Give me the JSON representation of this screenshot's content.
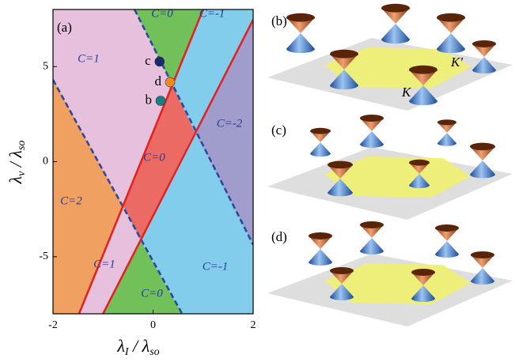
{
  "chart_data": {
    "type": "phase_diagram",
    "panel_label": "(a)",
    "xlabel": {
      "symbol": "λ",
      "sub": "I",
      "slash": " / ",
      "symbol2": "λ",
      "sub2": "so"
    },
    "ylabel": {
      "symbol": "λ",
      "sub": "v",
      "slash": " / ",
      "symbol2": "λ",
      "sub2": "so"
    },
    "xlim": [
      -2,
      2
    ],
    "ylim": [
      -8,
      8
    ],
    "xticks": [
      -2,
      0,
      2
    ],
    "yticks": [
      -5,
      0,
      5
    ],
    "regions": [
      {
        "label": "C=2",
        "color": "#f0a060"
      },
      {
        "label": "C=1",
        "color": "#e6c0dc"
      },
      {
        "label": "C=0",
        "color": "#72c05a"
      },
      {
        "label": "C=-1",
        "color": "#82cdec"
      },
      {
        "label": "C=-2",
        "color": "#a09ccb"
      },
      {
        "label": "C=0",
        "color": "#ec6a64"
      },
      {
        "label": "C=1",
        "color": "#e6c0dc"
      },
      {
        "label": "C=0",
        "color": "#72c05a"
      },
      {
        "label": "C=-1",
        "color": "#82cdec"
      }
    ],
    "boundaries": [
      {
        "style": "dashed",
        "color": "#2a4aa0",
        "x": [
          -2,
          0.58
        ],
        "values": [
          4.3,
          -8
        ]
      },
      {
        "style": "dashed",
        "color": "#2a4aa0",
        "x": [
          -0.37,
          2
        ],
        "values": [
          8,
          -4.37
        ]
      },
      {
        "style": "solid",
        "color": "#e02424",
        "x": [
          -1.48,
          1.0
        ],
        "values": [
          -8,
          8
        ]
      },
      {
        "style": "solid",
        "color": "#e02424",
        "x": [
          -1.0,
          2
        ],
        "values": [
          -8,
          7.46
        ]
      }
    ],
    "points": [
      {
        "name": "c",
        "color": "#1c2a6e",
        "x": 0.13,
        "y": 5.26
      },
      {
        "name": "d",
        "color": "#f08a20",
        "x": 0.34,
        "y": 4.18
      },
      {
        "name": "b",
        "color": "#1a7f80",
        "x": 0.15,
        "y": 3.2
      }
    ]
  },
  "figure_panels": [
    {
      "label": "(b)",
      "annotations": [
        "K",
        "K′"
      ]
    },
    {
      "label": "(c)"
    },
    {
      "label": "(d)"
    }
  ]
}
